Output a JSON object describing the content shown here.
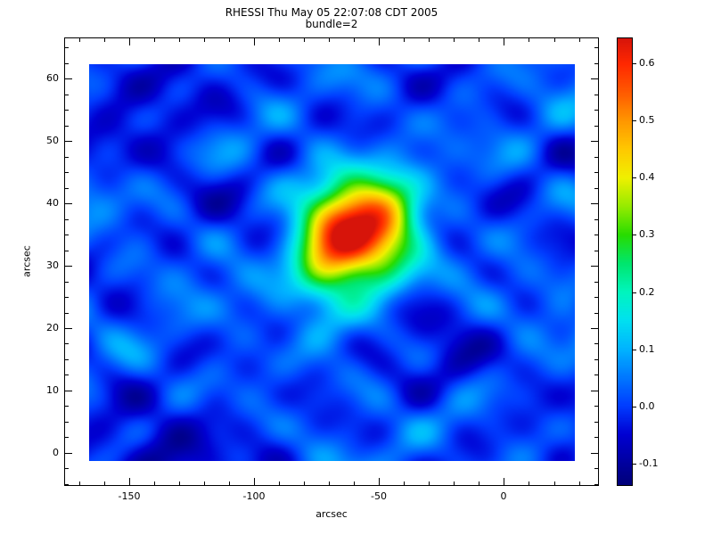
{
  "chart_data": {
    "type": "heatmap",
    "title": "RHESSI Thu May 05 22:07:08 CDT 2005",
    "subtitle": "bundle=2",
    "xlabel": "arcsec",
    "ylabel": "arcsec",
    "xlim": [
      -176,
      38
    ],
    "ylim": [
      -5.3,
      66.6
    ],
    "image_extent": {
      "x": [
        -166.0,
        28.6
      ],
      "y": [
        -1.3,
        62.3
      ]
    },
    "xticks": [
      -150,
      -100,
      -50,
      0
    ],
    "yticks": [
      0,
      10,
      20,
      30,
      40,
      50,
      60
    ],
    "x_minor_step": 10,
    "y_minor_step": 2.5,
    "peak": {
      "x": -60,
      "y": 35,
      "value": 0.63
    },
    "colorbar": {
      "min": -0.139,
      "max": 0.645,
      "ticks": [
        -0.1,
        0.0,
        0.1,
        0.2,
        0.3,
        0.4,
        0.5,
        0.6
      ],
      "tick_decimals": 1
    },
    "colormap_stops": [
      [
        0.0,
        0,
        0,
        120
      ],
      [
        0.113,
        0,
        0,
        210
      ],
      [
        0.177,
        0,
        60,
        255
      ],
      [
        0.241,
        0,
        120,
        255
      ],
      [
        0.305,
        0,
        180,
        255
      ],
      [
        0.369,
        0,
        225,
        240
      ],
      [
        0.432,
        0,
        245,
        190
      ],
      [
        0.496,
        0,
        230,
        110
      ],
      [
        0.56,
        40,
        220,
        0
      ],
      [
        0.624,
        150,
        235,
        0
      ],
      [
        0.688,
        240,
        240,
        0
      ],
      [
        0.752,
        255,
        200,
        0
      ],
      [
        0.816,
        255,
        150,
        0
      ],
      [
        0.879,
        255,
        90,
        0
      ],
      [
        0.943,
        255,
        40,
        0
      ],
      [
        1.0,
        215,
        20,
        10
      ]
    ],
    "field_model": {
      "offset": 0.012,
      "waves": [
        {
          "amp": 0.042,
          "kx": 0.11,
          "phx": 0.4,
          "ky": 0.5,
          "phy": 1.3
        },
        {
          "amp": 0.036,
          "kx": 0.16,
          "phx": 2.2,
          "ky": 0.4,
          "phy": 2.7
        },
        {
          "amp": 0.03,
          "kx": 0.065,
          "phx": 4.1,
          "ky": 0.3,
          "phy": 0.9
        },
        {
          "amp": 0.026,
          "kx": 0.225,
          "phx": 1.1,
          "ky": 0.63,
          "phy": 4.0
        },
        {
          "amp": 0.02,
          "kx": 0.045,
          "phx": 5.2,
          "ky": 0.18,
          "phy": 2.3
        }
      ],
      "sources": [
        {
          "x": -60,
          "y": 35,
          "sx": 13,
          "sy": 6.2,
          "amp": 0.58
        },
        {
          "x": -44,
          "y": 37.5,
          "sx": 9,
          "sy": 5.5,
          "amp": 0.17
        },
        {
          "x": -73,
          "y": 30.5,
          "sx": 9,
          "sy": 5.5,
          "amp": 0.16
        },
        {
          "x": -138,
          "y": 57,
          "sx": 20,
          "sy": 6,
          "amp": -0.075
        },
        {
          "x": -140,
          "y": -1,
          "sx": 22,
          "sy": 6,
          "amp": -0.08
        },
        {
          "x": -25,
          "y": 14,
          "sx": 18,
          "sy": 5,
          "amp": -0.05
        }
      ]
    },
    "background_color": "#ffffff",
    "text_color": "#000000"
  }
}
